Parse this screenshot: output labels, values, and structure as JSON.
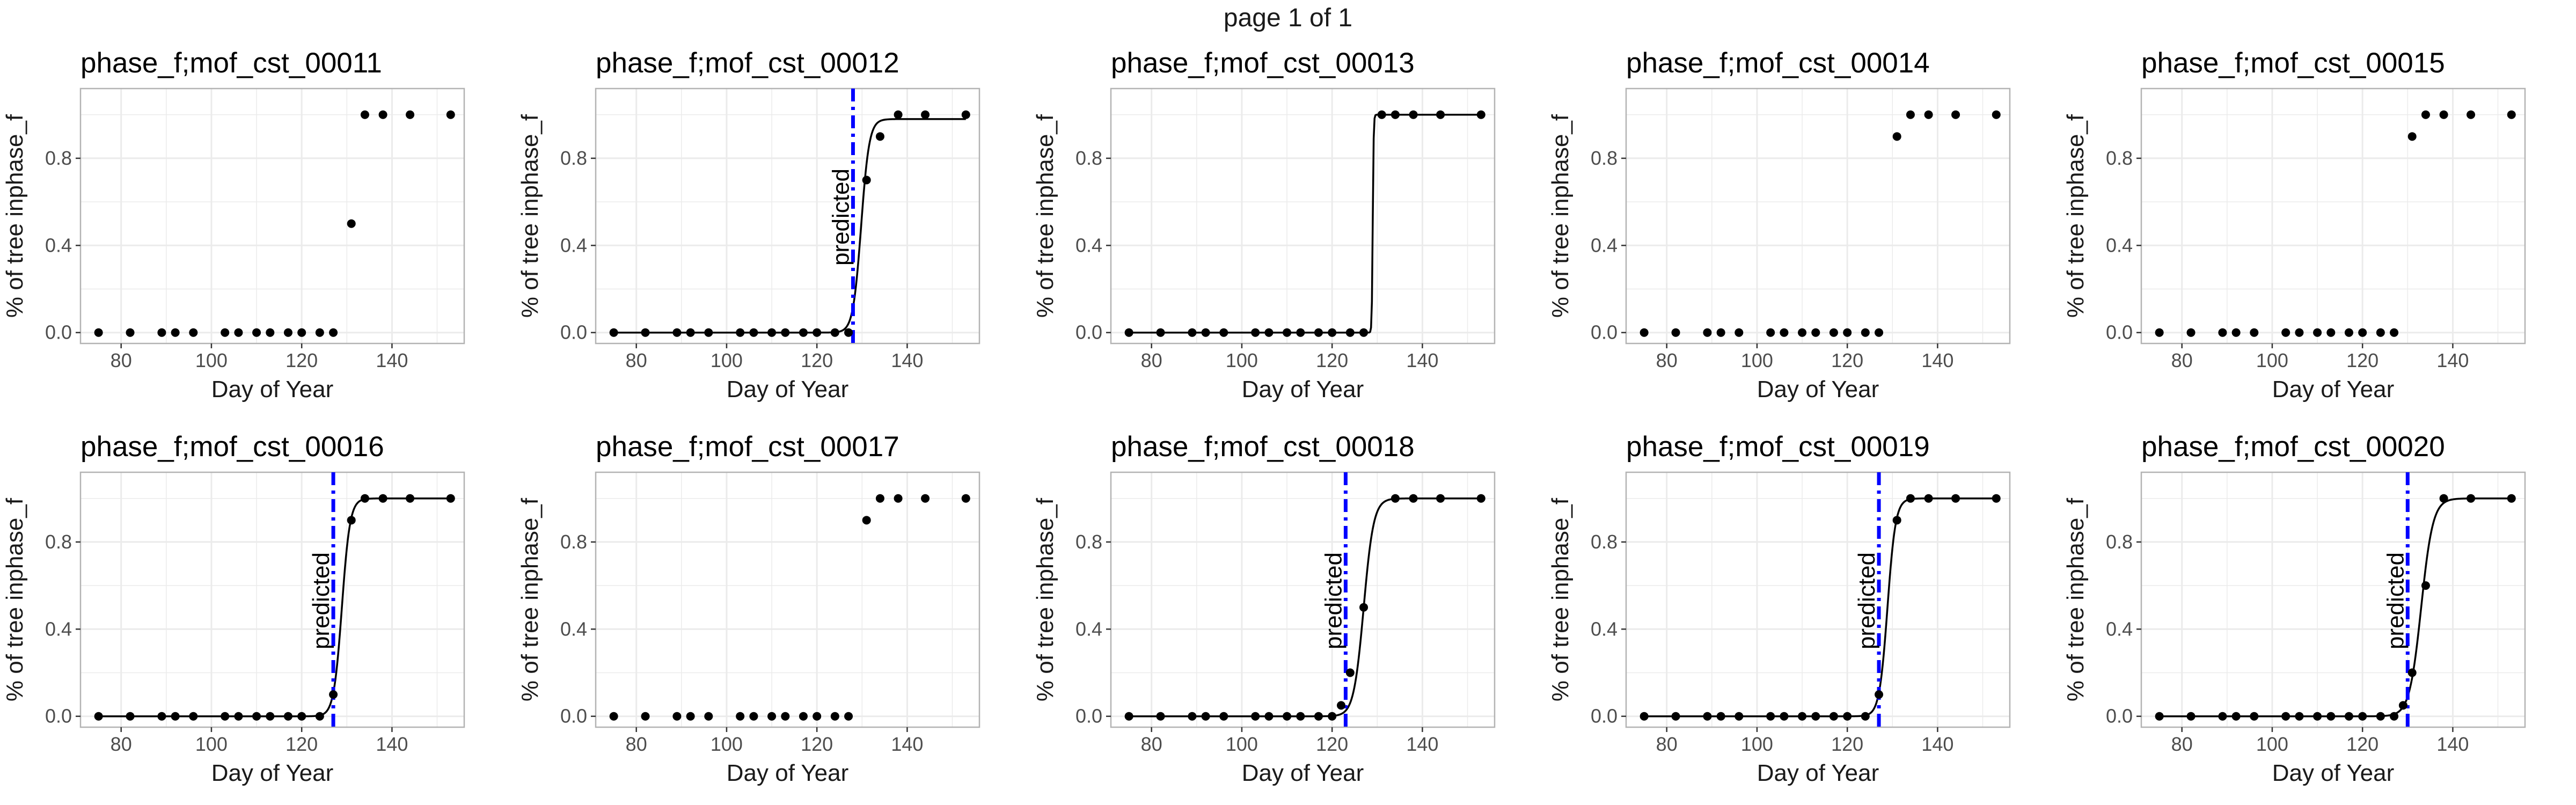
{
  "page_title": "page 1 of 1",
  "colors": {
    "panel_border": "#b3b3b3",
    "grid": "#ebebeb",
    "points": "#000000",
    "curve": "#000000",
    "predicted_line": "#0000ff",
    "text": "#1a1a1a",
    "tick_text": "#4d4d4d"
  },
  "chart_data": [
    {
      "type": "scatter",
      "title": "phase_f;mof_cst_00011",
      "xlabel": "Day of Year",
      "ylabel": "% of tree inphase_f",
      "xlim": [
        71,
        156
      ],
      "ylim": [
        -0.05,
        1.12
      ],
      "xticks": [
        80,
        100,
        120,
        140
      ],
      "yticks": [
        0.0,
        0.4,
        0.8
      ],
      "grid": true,
      "x": [
        75,
        82,
        89,
        92,
        96,
        103,
        106,
        110,
        113,
        117,
        120,
        124,
        127,
        131,
        134,
        138,
        144,
        153
      ],
      "y": [
        0,
        0,
        0,
        0,
        0,
        0,
        0,
        0,
        0,
        0,
        0,
        0,
        0,
        0.5,
        1,
        1,
        1,
        1
      ],
      "fit": null,
      "predicted": null
    },
    {
      "type": "scatter",
      "title": "phase_f;mof_cst_00012",
      "xlabel": "Day of Year",
      "ylabel": "% of tree inphase_f",
      "xlim": [
        71,
        156
      ],
      "ylim": [
        -0.05,
        1.12
      ],
      "xticks": [
        80,
        100,
        120,
        140
      ],
      "yticks": [
        0.0,
        0.4,
        0.8
      ],
      "grid": true,
      "x": [
        75,
        82,
        89,
        92,
        96,
        103,
        106,
        110,
        113,
        117,
        120,
        124,
        127,
        131,
        134,
        138,
        144,
        153
      ],
      "y": [
        0,
        0,
        0,
        0,
        0,
        0,
        0,
        0,
        0,
        0,
        0,
        0,
        0,
        0.7,
        0.9,
        1,
        1,
        1
      ],
      "fit": {
        "midpoint": 129.8,
        "scale": 0.9,
        "max": 0.98
      },
      "predicted": {
        "x": 128,
        "label": "predicted"
      }
    },
    {
      "type": "scatter",
      "title": "phase_f;mof_cst_00013",
      "xlabel": "Day of Year",
      "ylabel": "% of tree inphase_f",
      "xlim": [
        71,
        156
      ],
      "ylim": [
        -0.05,
        1.12
      ],
      "xticks": [
        80,
        100,
        120,
        140
      ],
      "yticks": [
        0.0,
        0.4,
        0.8
      ],
      "grid": true,
      "x": [
        75,
        82,
        89,
        92,
        96,
        103,
        106,
        110,
        113,
        117,
        120,
        124,
        127,
        131,
        134,
        138,
        144,
        153
      ],
      "y": [
        0,
        0,
        0,
        0,
        0,
        0,
        0,
        0,
        0,
        0,
        0,
        0,
        0,
        1,
        1,
        1,
        1,
        1
      ],
      "fit": {
        "midpoint": 129,
        "scale": 0.1,
        "max": 1
      },
      "predicted": null
    },
    {
      "type": "scatter",
      "title": "phase_f;mof_cst_00014",
      "xlabel": "Day of Year",
      "ylabel": "% of tree inphase_f",
      "xlim": [
        71,
        156
      ],
      "ylim": [
        -0.05,
        1.12
      ],
      "xticks": [
        80,
        100,
        120,
        140
      ],
      "yticks": [
        0.0,
        0.4,
        0.8
      ],
      "grid": true,
      "x": [
        75,
        82,
        89,
        92,
        96,
        103,
        106,
        110,
        113,
        117,
        120,
        124,
        127,
        131,
        134,
        138,
        144,
        153
      ],
      "y": [
        0,
        0,
        0,
        0,
        0,
        0,
        0,
        0,
        0,
        0,
        0,
        0,
        0,
        0.9,
        1,
        1,
        1,
        1
      ],
      "fit": null,
      "predicted": null
    },
    {
      "type": "scatter",
      "title": "phase_f;mof_cst_00015",
      "xlabel": "Day of Year",
      "ylabel": "% of tree inphase_f",
      "xlim": [
        71,
        156
      ],
      "ylim": [
        -0.05,
        1.12
      ],
      "xticks": [
        80,
        100,
        120,
        140
      ],
      "yticks": [
        0.0,
        0.4,
        0.8
      ],
      "grid": true,
      "x": [
        75,
        82,
        89,
        92,
        96,
        103,
        106,
        110,
        113,
        117,
        120,
        124,
        127,
        131,
        134,
        138,
        144,
        153
      ],
      "y": [
        0,
        0,
        0,
        0,
        0,
        0,
        0,
        0,
        0,
        0,
        0,
        0,
        0,
        0.9,
        1,
        1,
        1,
        1
      ],
      "fit": null,
      "predicted": null
    },
    {
      "type": "scatter",
      "title": "phase_f;mof_cst_00016",
      "xlabel": "Day of Year",
      "ylabel": "% of tree inphase_f",
      "xlim": [
        71,
        156
      ],
      "ylim": [
        -0.05,
        1.12
      ],
      "xticks": [
        80,
        100,
        120,
        140
      ],
      "yticks": [
        0.0,
        0.4,
        0.8
      ],
      "grid": true,
      "x": [
        75,
        82,
        89,
        92,
        96,
        103,
        106,
        110,
        113,
        117,
        120,
        124,
        127,
        131,
        134,
        138,
        144,
        153
      ],
      "y": [
        0,
        0,
        0,
        0,
        0,
        0,
        0,
        0,
        0,
        0,
        0,
        0,
        0.1,
        0.9,
        1,
        1,
        1,
        1
      ],
      "fit": {
        "midpoint": 128.9,
        "scale": 0.9,
        "max": 1
      },
      "predicted": {
        "x": 127,
        "label": "predicted"
      }
    },
    {
      "type": "scatter",
      "title": "phase_f;mof_cst_00017",
      "xlabel": "Day of Year",
      "ylabel": "% of tree inphase_f",
      "xlim": [
        71,
        156
      ],
      "ylim": [
        -0.05,
        1.12
      ],
      "xticks": [
        80,
        100,
        120,
        140
      ],
      "yticks": [
        0.0,
        0.4,
        0.8
      ],
      "grid": true,
      "x": [
        75,
        82,
        89,
        92,
        96,
        103,
        106,
        110,
        113,
        117,
        120,
        124,
        127,
        131,
        134,
        138,
        144,
        153
      ],
      "y": [
        0,
        0,
        0,
        0,
        0,
        0,
        0,
        0,
        0,
        0,
        0,
        0,
        0,
        0.9,
        1,
        1,
        1,
        1
      ],
      "fit": null,
      "predicted": null
    },
    {
      "type": "scatter",
      "title": "phase_f;mof_cst_00018",
      "xlabel": "Day of Year",
      "ylabel": "% of tree inphase_f",
      "xlim": [
        71,
        156
      ],
      "ylim": [
        -0.05,
        1.12
      ],
      "xticks": [
        80,
        100,
        120,
        140
      ],
      "yticks": [
        0.0,
        0.4,
        0.8
      ],
      "grid": true,
      "x": [
        75,
        82,
        89,
        92,
        96,
        103,
        106,
        110,
        113,
        117,
        120,
        122,
        124,
        127,
        134,
        138,
        144,
        153
      ],
      "y": [
        0,
        0,
        0,
        0,
        0,
        0,
        0,
        0,
        0,
        0,
        0,
        0.05,
        0.2,
        0.5,
        1,
        1,
        1,
        1
      ],
      "fit": {
        "midpoint": 127,
        "scale": 1.1,
        "max": 1
      },
      "predicted": {
        "x": 123,
        "label": "predicted"
      }
    },
    {
      "type": "scatter",
      "title": "phase_f;mof_cst_00019",
      "xlabel": "Day of Year",
      "ylabel": "% of tree inphase_f",
      "xlim": [
        71,
        156
      ],
      "ylim": [
        -0.05,
        1.12
      ],
      "xticks": [
        80,
        100,
        120,
        140
      ],
      "yticks": [
        0.0,
        0.4,
        0.8
      ],
      "grid": true,
      "x": [
        75,
        82,
        89,
        92,
        96,
        103,
        106,
        110,
        113,
        117,
        120,
        124,
        127,
        131,
        134,
        138,
        144,
        153
      ],
      "y": [
        0,
        0,
        0,
        0,
        0,
        0,
        0,
        0,
        0,
        0,
        0,
        0,
        0.1,
        0.9,
        1,
        1,
        1,
        1
      ],
      "fit": {
        "midpoint": 128.9,
        "scale": 0.9,
        "max": 1
      },
      "predicted": {
        "x": 127,
        "label": "predicted"
      }
    },
    {
      "type": "scatter",
      "title": "phase_f;mof_cst_00020",
      "xlabel": "Day of Year",
      "ylabel": "% of tree inphase_f",
      "xlim": [
        71,
        156
      ],
      "ylim": [
        -0.05,
        1.12
      ],
      "xticks": [
        80,
        100,
        120,
        140
      ],
      "yticks": [
        0.0,
        0.4,
        0.8
      ],
      "grid": true,
      "x": [
        75,
        82,
        89,
        92,
        96,
        103,
        106,
        110,
        113,
        117,
        120,
        124,
        127,
        129,
        131,
        134,
        138,
        144,
        153
      ],
      "y": [
        0,
        0,
        0,
        0,
        0,
        0,
        0,
        0,
        0,
        0,
        0,
        0,
        0,
        0.05,
        0.2,
        0.6,
        1,
        1,
        1
      ],
      "fit": {
        "midpoint": 133,
        "scale": 1.3,
        "max": 1
      },
      "predicted": {
        "x": 130,
        "label": "predicted"
      }
    }
  ]
}
